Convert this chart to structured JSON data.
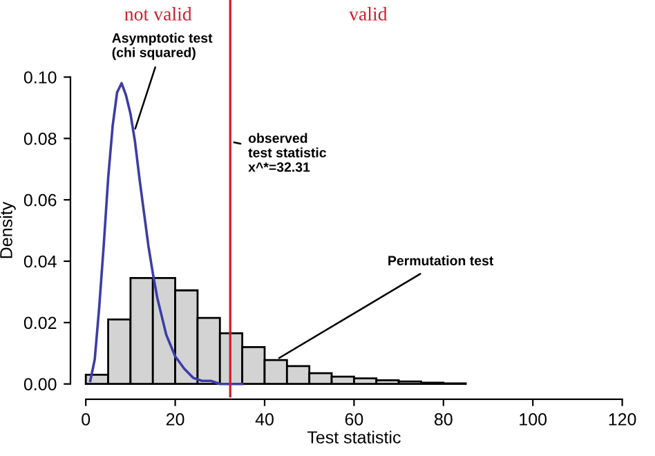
{
  "chart_data": {
    "type": "histogram",
    "xlabel": "Test statistic",
    "ylabel": "Density",
    "xlim": [
      0,
      120
    ],
    "ylim": [
      0,
      0.1
    ],
    "xticks": [
      0,
      20,
      40,
      60,
      80,
      100,
      120
    ],
    "yticks": [
      {
        "value": 0,
        "label": "0.00"
      },
      {
        "value": 0.02,
        "label": "0.02"
      },
      {
        "value": 0.04,
        "label": "0.04"
      },
      {
        "value": 0.06,
        "label": "0.06"
      },
      {
        "value": 0.08,
        "label": "0.08"
      },
      {
        "value": 0.1,
        "label": "0.10"
      }
    ],
    "series": [
      {
        "color": "#d3d3d3",
        "bins": [
          0,
          5,
          10,
          15,
          20,
          25,
          30,
          35,
          40,
          45,
          50,
          55,
          60,
          65,
          70,
          75,
          80,
          85
        ],
        "values": [
          0.003,
          0.021,
          0.0345,
          0.0345,
          0.0305,
          0.0215,
          0.0165,
          0.012,
          0.0078,
          0.0058,
          0.0035,
          0.0024,
          0.0018,
          0.0012,
          0.0008,
          0.0004,
          0.0002
        ]
      },
      {
        "type": "line",
        "color": "#3c3ca8",
        "x": [
          1,
          2,
          3,
          4,
          5,
          6,
          7,
          8,
          9,
          10,
          11,
          12,
          13,
          14,
          15,
          16,
          18,
          20,
          22,
          24,
          26,
          28,
          30,
          32,
          35
        ],
        "values": [
          0.001,
          0.008,
          0.025,
          0.045,
          0.067,
          0.084,
          0.095,
          0.098,
          0.094,
          0.088,
          0.079,
          0.067,
          0.056,
          0.045,
          0.036,
          0.028,
          0.016,
          0.009,
          0.005,
          0.002,
          0.001,
          0.001,
          0.0,
          0.0,
          0.0
        ]
      }
    ],
    "ref_lines": [
      {
        "axis": "x",
        "value": 32.31,
        "color": "#d0202a"
      }
    ],
    "annotations": [
      "not valid",
      "valid",
      {
        "text": "Asymptotic test\n(chi squared)",
        "x": 10.8,
        "y": 0.082
      },
      {
        "text": "observed\ntest statistic\nx^*=32.31",
        "x": 32.31,
        "y": 0.079
      },
      {
        "text": "Permutation test",
        "x": 42.5,
        "y": 0.0078
      }
    ],
    "grid": false,
    "legend": false
  }
}
